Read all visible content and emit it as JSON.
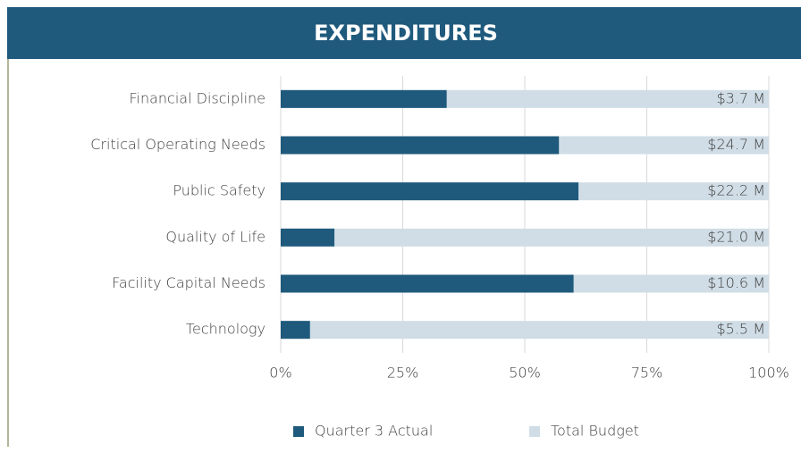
{
  "chart_data": {
    "type": "bar",
    "orientation": "horizontal",
    "title": "EXPENDITURES",
    "categories": [
      "Financial Discipline",
      "Critical Operating Needs",
      "Public Safety",
      "Quality of Life",
      "Facility Capital Needs",
      "Technology"
    ],
    "series": [
      {
        "name": "Quarter 3 Actual",
        "color": "#1f5a7d",
        "values": [
          34,
          57,
          61,
          11,
          60,
          6
        ]
      },
      {
        "name": "Total Budget",
        "color": "#d0dde6",
        "values": [
          100,
          100,
          100,
          100,
          100,
          100
        ]
      }
    ],
    "annotations": [
      "$3.7 M",
      "$24.7 M",
      "$22.2 M",
      "$21.0 M",
      "$10.6 M",
      "$5.5 M"
    ],
    "xlim": [
      0,
      100
    ],
    "xticks": [
      {
        "value": 0,
        "label": "0%"
      },
      {
        "value": 25,
        "label": "25%"
      },
      {
        "value": 50,
        "label": "50%"
      },
      {
        "value": 75,
        "label": "75%"
      },
      {
        "value": 100,
        "label": "100%"
      }
    ],
    "grid": true,
    "legend": "bottom"
  }
}
